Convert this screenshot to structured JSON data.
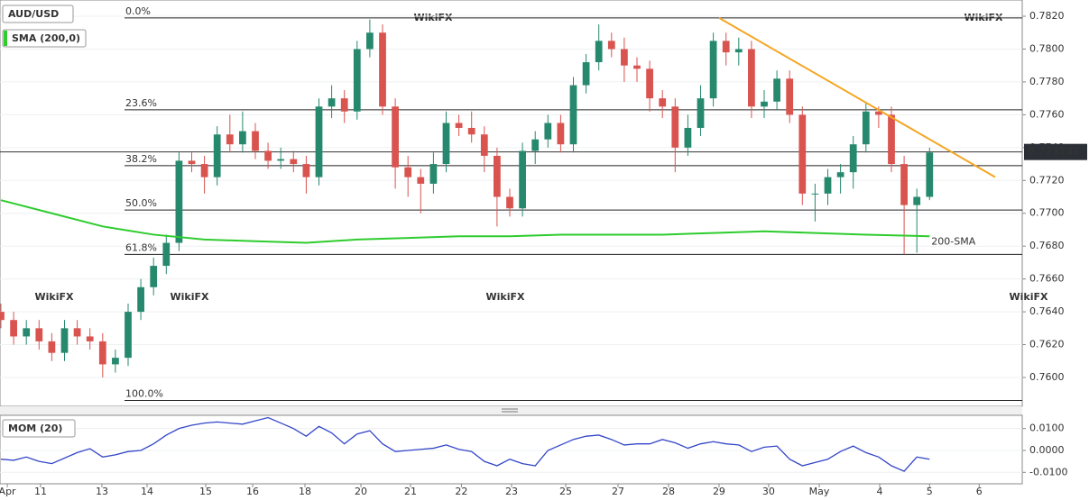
{
  "chart_data": [
    {
      "type": "candlestick",
      "title": "AUD/USD",
      "watermark": "WikiFX",
      "x": [
        0,
        1,
        2,
        3,
        4,
        5,
        6,
        7,
        8,
        9,
        10,
        11,
        12,
        13,
        14,
        15,
        16,
        17,
        18,
        19,
        20,
        21,
        22,
        23,
        24,
        25,
        26,
        27,
        28,
        29,
        30,
        31,
        32,
        33,
        34,
        35,
        36,
        37,
        38,
        39,
        40,
        41,
        42,
        43,
        44,
        45,
        46,
        47,
        48,
        49,
        50,
        51,
        52,
        53,
        54,
        55,
        56,
        57,
        58,
        59,
        60,
        61,
        62,
        63,
        64,
        65,
        66,
        67,
        68,
        69,
        70,
        71,
        72,
        73
      ],
      "open": [
        0.764,
        0.7635,
        0.7625,
        0.763,
        0.7622,
        0.7615,
        0.763,
        0.7625,
        0.7622,
        0.7608,
        0.7612,
        0.764,
        0.7655,
        0.7668,
        0.7682,
        0.7732,
        0.773,
        0.7722,
        0.7748,
        0.7742,
        0.775,
        0.7738,
        0.7732,
        0.7733,
        0.773,
        0.7722,
        0.7765,
        0.777,
        0.7762,
        0.78,
        0.781,
        0.7765,
        0.7728,
        0.7722,
        0.7718,
        0.773,
        0.7755,
        0.7752,
        0.7748,
        0.7735,
        0.771,
        0.7703,
        0.7738,
        0.7745,
        0.7755,
        0.7742,
        0.7778,
        0.7792,
        0.7805,
        0.78,
        0.779,
        0.7788,
        0.777,
        0.7765,
        0.774,
        0.7752,
        0.777,
        0.7805,
        0.7798,
        0.78,
        0.7765,
        0.7768,
        0.7782,
        0.776,
        0.7712,
        0.7712,
        0.7722,
        0.7725,
        0.7742,
        0.7762,
        0.776,
        0.773,
        0.7705,
        0.771
      ],
      "high": [
        0.7645,
        0.764,
        0.7635,
        0.7635,
        0.7627,
        0.7635,
        0.7635,
        0.763,
        0.7627,
        0.7617,
        0.7645,
        0.766,
        0.7673,
        0.7687,
        0.7737,
        0.7737,
        0.7735,
        0.7753,
        0.776,
        0.7762,
        0.7755,
        0.7743,
        0.774,
        0.7738,
        0.7735,
        0.777,
        0.7778,
        0.7775,
        0.7805,
        0.7818,
        0.7815,
        0.777,
        0.7735,
        0.7727,
        0.7737,
        0.7762,
        0.776,
        0.7762,
        0.7753,
        0.774,
        0.7715,
        0.7743,
        0.775,
        0.776,
        0.776,
        0.7783,
        0.7797,
        0.7815,
        0.781,
        0.7807,
        0.7795,
        0.7793,
        0.7775,
        0.777,
        0.776,
        0.7778,
        0.781,
        0.781,
        0.7807,
        0.7805,
        0.7775,
        0.7787,
        0.7787,
        0.7765,
        0.7718,
        0.7727,
        0.773,
        0.7747,
        0.7767,
        0.7765,
        0.7765,
        0.7735,
        0.7715,
        0.774
      ],
      "low": [
        0.763,
        0.762,
        0.762,
        0.7617,
        0.761,
        0.761,
        0.762,
        0.7617,
        0.76,
        0.7603,
        0.7607,
        0.7635,
        0.765,
        0.7663,
        0.7677,
        0.7725,
        0.7712,
        0.7717,
        0.7737,
        0.7737,
        0.7733,
        0.7727,
        0.7727,
        0.7725,
        0.7712,
        0.7717,
        0.7758,
        0.7755,
        0.7757,
        0.7795,
        0.776,
        0.7715,
        0.771,
        0.77,
        0.7712,
        0.7725,
        0.7747,
        0.7743,
        0.7725,
        0.7692,
        0.7698,
        0.7698,
        0.773,
        0.774,
        0.7737,
        0.7737,
        0.7773,
        0.7787,
        0.7795,
        0.778,
        0.778,
        0.7762,
        0.7758,
        0.7725,
        0.7735,
        0.7747,
        0.7765,
        0.779,
        0.779,
        0.7758,
        0.7758,
        0.7763,
        0.7755,
        0.7705,
        0.7695,
        0.7705,
        0.7712,
        0.7715,
        0.7737,
        0.7752,
        0.7725,
        0.7675,
        0.7676,
        0.7708
      ],
      "close": [
        0.7635,
        0.7625,
        0.763,
        0.7622,
        0.7615,
        0.763,
        0.7625,
        0.7622,
        0.7608,
        0.7612,
        0.764,
        0.7655,
        0.7668,
        0.7682,
        0.7732,
        0.773,
        0.7722,
        0.7748,
        0.7742,
        0.775,
        0.7738,
        0.7732,
        0.7733,
        0.773,
        0.7722,
        0.7765,
        0.777,
        0.7762,
        0.78,
        0.781,
        0.7765,
        0.7728,
        0.7722,
        0.7718,
        0.773,
        0.7755,
        0.7752,
        0.7748,
        0.7735,
        0.771,
        0.7703,
        0.7738,
        0.7745,
        0.7755,
        0.7742,
        0.7778,
        0.7792,
        0.7805,
        0.78,
        0.779,
        0.7788,
        0.777,
        0.7765,
        0.774,
        0.7752,
        0.777,
        0.7805,
        0.7798,
        0.78,
        0.7765,
        0.7768,
        0.7782,
        0.776,
        0.7712,
        0.7712,
        0.7722,
        0.7725,
        0.7742,
        0.7762,
        0.776,
        0.773,
        0.7705,
        0.771,
        0.7737
      ],
      "up_color": "#26896e",
      "down_color": "#d9534f",
      "xlim": [
        -0.071,
        80.284
      ],
      "xticks": [
        {
          "value": 0.5,
          "label": "Apr"
        },
        {
          "value": 3.12,
          "label": "11"
        },
        {
          "value": 7.94,
          "label": "13"
        },
        {
          "value": 11.49,
          "label": "14"
        },
        {
          "value": 16.1,
          "label": "15"
        },
        {
          "value": 19.79,
          "label": "16"
        },
        {
          "value": 23.9,
          "label": "18"
        },
        {
          "value": 28.3,
          "label": "20"
        },
        {
          "value": 32.2,
          "label": "21"
        },
        {
          "value": 36.2,
          "label": "22"
        },
        {
          "value": 40.14,
          "label": "23"
        },
        {
          "value": 44.4,
          "label": "25"
        },
        {
          "value": 48.51,
          "label": "27"
        },
        {
          "value": 52.48,
          "label": "28"
        },
        {
          "value": 56.45,
          "label": "29"
        },
        {
          "value": 60.35,
          "label": "30"
        },
        {
          "value": 64.33,
          "label": "May"
        },
        {
          "value": 69.08,
          "label": "4"
        },
        {
          "value": 73.0,
          "label": "5"
        },
        {
          "value": 76.9,
          "label": "6"
        }
      ],
      "ylim": [
        0.7583,
        0.78255
      ],
      "yticks": [
        {
          "value": 0.76,
          "label": "0.7600"
        },
        {
          "value": 0.762,
          "label": "0.7620"
        },
        {
          "value": 0.764,
          "label": "0.7640"
        },
        {
          "value": 0.766,
          "label": "0.7660"
        },
        {
          "value": 0.768,
          "label": "0.7680"
        },
        {
          "value": 0.77,
          "label": "0.7700"
        },
        {
          "value": 0.772,
          "label": "0.7720"
        },
        {
          "value": 0.774,
          "label": "0.7740"
        },
        {
          "value": 0.776,
          "label": "0.7760"
        },
        {
          "value": 0.778,
          "label": "0.7780"
        },
        {
          "value": 0.78,
          "label": "0.7800"
        },
        {
          "value": 0.782,
          "label": "0.7820"
        }
      ],
      "grid": true,
      "last_price": 0.773735,
      "fib_levels": [
        {
          "value": 0.7819,
          "label": "0.0%"
        },
        {
          "value": 0.7763,
          "label": "23.6%"
        },
        {
          "value": 0.7729,
          "label": "38.2%"
        },
        {
          "value": 0.7702,
          "label": "50.0%"
        },
        {
          "value": 0.7675,
          "label": "61.8%"
        },
        {
          "value": 0.7586,
          "label": "100.0%"
        }
      ],
      "sma": {
        "name": "SMA (200,0)",
        "annotation": "200-SMA",
        "color": "#2ecc2e",
        "x": [
          0,
          4,
          8,
          12,
          16,
          20,
          24,
          28,
          32,
          36,
          40,
          44,
          48,
          52,
          56,
          60,
          64,
          68,
          73
        ],
        "values": [
          0.7708,
          0.77,
          0.7692,
          0.7687,
          0.7684,
          0.7683,
          0.7682,
          0.7684,
          0.7685,
          0.7686,
          0.7686,
          0.7687,
          0.7687,
          0.7687,
          0.7688,
          0.7689,
          0.7688,
          0.7687,
          0.7686
        ]
      },
      "trendline": {
        "color": "#f5a623",
        "x": [
          56.45,
          78.16
        ],
        "values": [
          0.7819,
          0.7722
        ]
      }
    },
    {
      "type": "line",
      "title": "MOM (20)",
      "x": [
        0,
        1,
        2,
        3,
        4,
        5,
        6,
        7,
        8,
        9,
        10,
        11,
        12,
        13,
        14,
        15,
        16,
        17,
        18,
        19,
        20,
        21,
        22,
        23,
        24,
        25,
        26,
        27,
        28,
        29,
        30,
        31,
        32,
        33,
        34,
        35,
        36,
        37,
        38,
        39,
        40,
        41,
        42,
        43,
        44,
        45,
        46,
        47,
        48,
        49,
        50,
        51,
        52,
        53,
        54,
        55,
        56,
        57,
        58,
        59,
        60,
        61,
        62,
        63,
        64,
        65,
        66,
        67,
        68,
        69,
        70,
        71,
        72,
        73
      ],
      "series": [
        {
          "color": "#3346c8",
          "values": [
            -0.004,
            -0.0045,
            -0.003,
            -0.005,
            -0.006,
            -0.0035,
            -0.001,
            0.0008,
            -0.003,
            -0.002,
            -0.0005,
            0.0,
            0.003,
            0.007,
            0.01,
            0.0115,
            0.0125,
            0.013,
            0.0125,
            0.012,
            0.0135,
            0.015,
            0.0125,
            0.01,
            0.0065,
            0.011,
            0.008,
            0.003,
            0.0075,
            0.009,
            0.003,
            -0.0005,
            0.0,
            0.0005,
            0.001,
            0.0025,
            0.0005,
            -0.0005,
            -0.005,
            -0.007,
            -0.004,
            -0.006,
            -0.007,
            0.0,
            0.0025,
            0.005,
            0.0065,
            0.007,
            0.005,
            0.0025,
            0.003,
            0.003,
            0.005,
            0.0035,
            0.001,
            0.003,
            0.004,
            0.003,
            0.0025,
            -0.0005,
            0.0015,
            0.002,
            -0.004,
            -0.007,
            -0.0055,
            -0.004,
            -0.0005,
            0.002,
            -0.001,
            -0.003,
            -0.007,
            -0.0095,
            -0.003,
            -0.004
          ]
        }
      ],
      "xlim": [
        -0.071,
        80.284
      ],
      "ylim": [
        -0.0144,
        0.0148
      ],
      "yticks": [
        {
          "value": 0.01,
          "label": "0.0100"
        },
        {
          "value": 0,
          "label": "0.0000"
        },
        {
          "value": -0.01,
          "label": "-0.0100"
        }
      ],
      "grid": true
    }
  ]
}
